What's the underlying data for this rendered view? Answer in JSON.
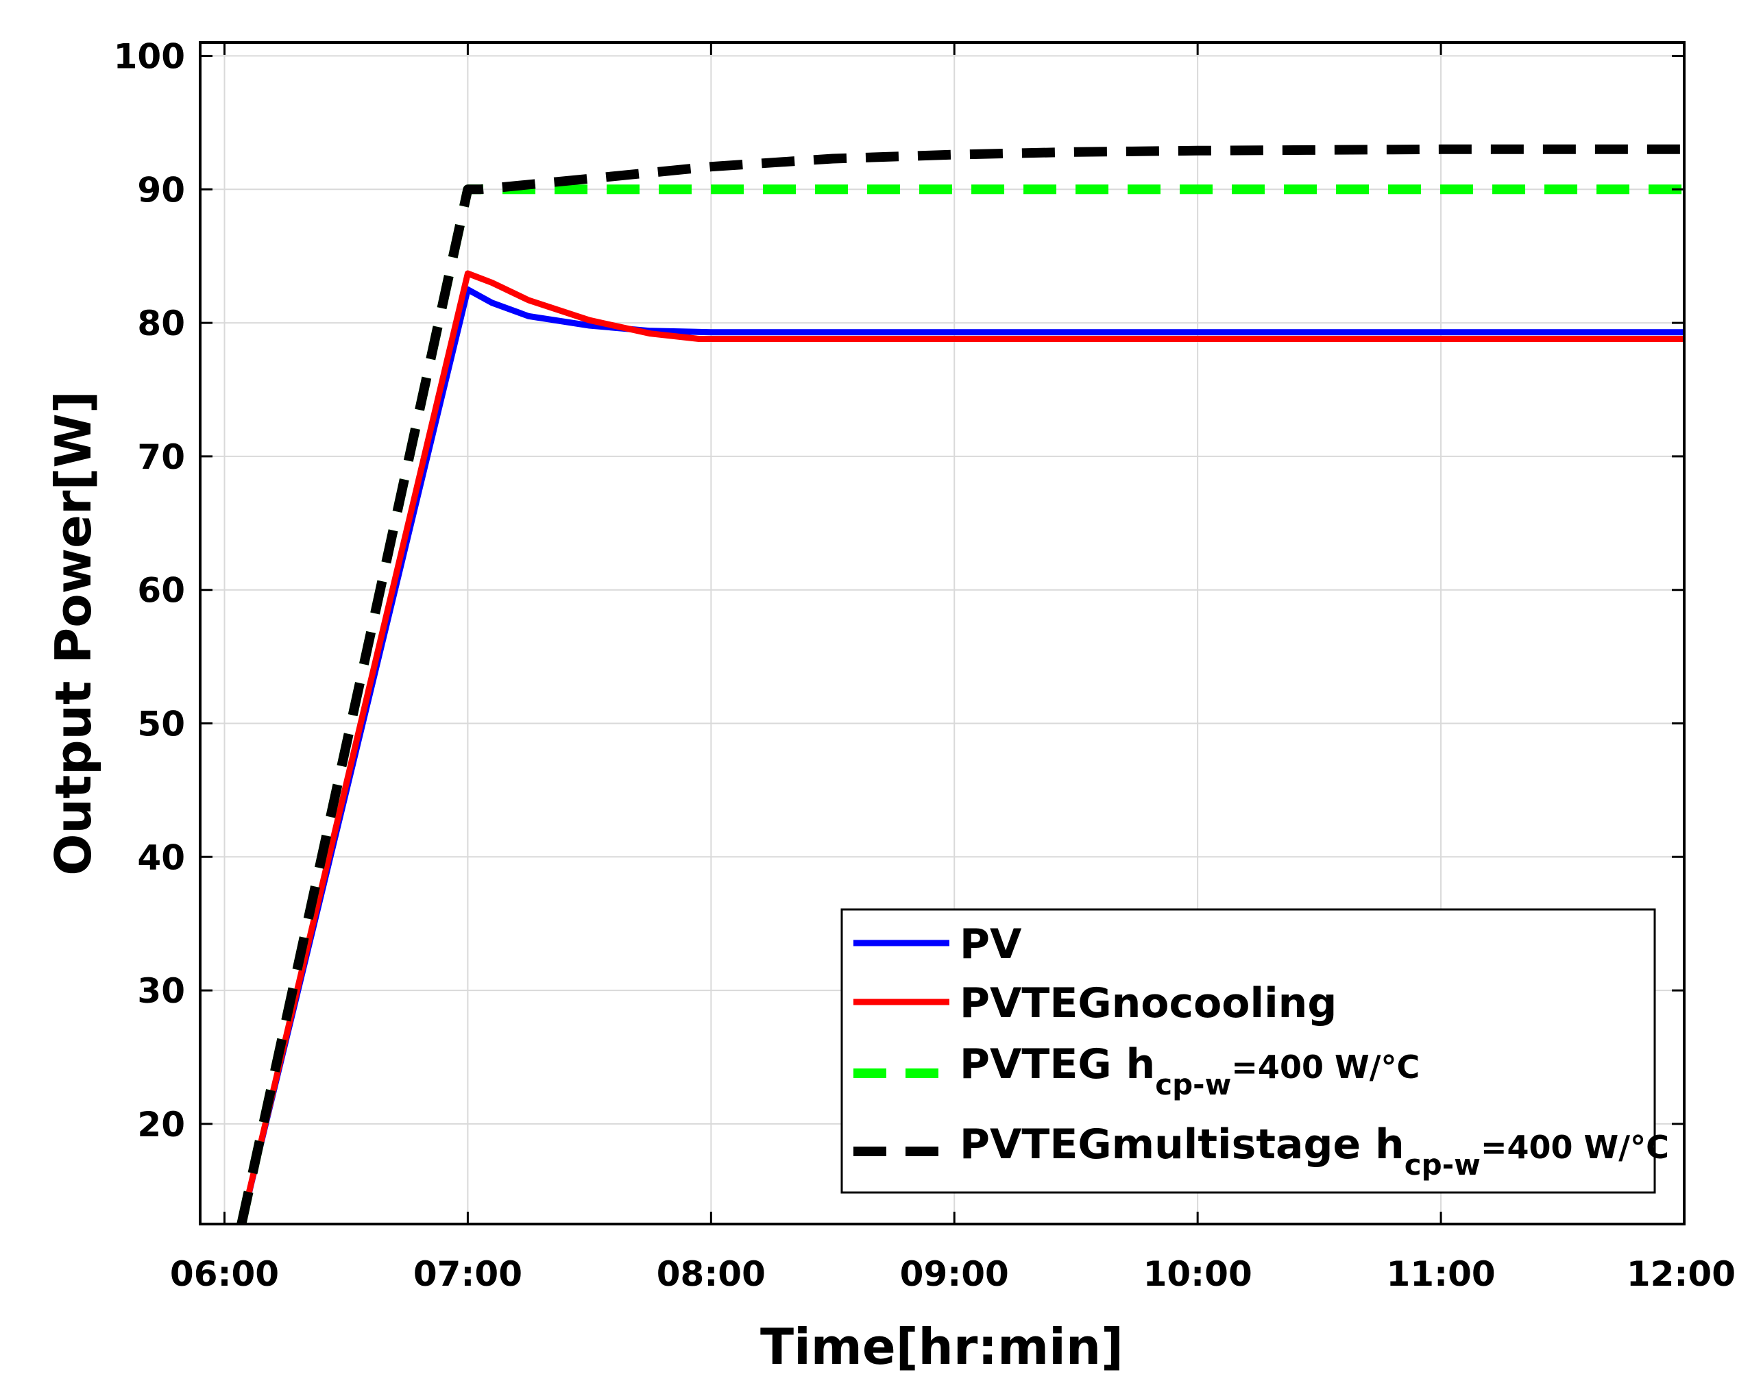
{
  "chart_data": {
    "type": "line",
    "title": "",
    "xlabel": "Time[hr:min]",
    "ylabel": "Output Power[W]",
    "xlim": [
      5.9,
      12.0
    ],
    "ylim": [
      12.5,
      101
    ],
    "x_ticks": [
      "06:00",
      "07:00",
      "08:00",
      "09:00",
      "10:00",
      "11:00",
      "12:00"
    ],
    "x_tick_values": [
      6,
      7,
      8,
      9,
      10,
      11,
      12
    ],
    "y_ticks": [
      "20",
      "30",
      "40",
      "50",
      "60",
      "70",
      "80",
      "90",
      "100"
    ],
    "y_tick_values": [
      20,
      30,
      40,
      50,
      60,
      70,
      80,
      90,
      100
    ],
    "grid": true,
    "legend_position": "bottom-right",
    "series": [
      {
        "name": "PV",
        "color": "#0000ff",
        "style": "solid",
        "x": [
          6.07,
          7.0,
          7.1,
          7.25,
          7.5,
          7.75,
          8.0,
          9.0,
          10.0,
          11.0,
          12.0
        ],
        "y": [
          12.5,
          82.5,
          81.5,
          80.5,
          79.8,
          79.4,
          79.3,
          79.3,
          79.3,
          79.3,
          79.3
        ]
      },
      {
        "name": "PVTEGnocooling",
        "color": "#ff0000",
        "style": "solid",
        "x": [
          6.07,
          7.0,
          7.1,
          7.25,
          7.5,
          7.75,
          7.95,
          9.0,
          10.0,
          11.0,
          12.0
        ],
        "y": [
          12.5,
          83.7,
          83.0,
          81.7,
          80.2,
          79.2,
          78.8,
          78.8,
          78.8,
          78.8,
          78.8
        ]
      },
      {
        "name": "PVTEG",
        "legend_subscript": "cp-w",
        "legend_suffix": "=400 W/°C",
        "color": "#00ff00",
        "style": "dashed",
        "x": [
          6.07,
          7.0,
          7.05,
          8.0,
          9.0,
          10.0,
          11.0,
          12.0
        ],
        "y": [
          12.5,
          90.0,
          90.0,
          90.0,
          90.0,
          90.0,
          90.0,
          90.0
        ]
      },
      {
        "name": "PVTEGmultistage",
        "legend_subscript": "cp-w",
        "legend_suffix": "=400 W/°C",
        "color": "#000000",
        "style": "dashed",
        "x": [
          6.07,
          7.0,
          7.05,
          7.5,
          8.0,
          8.5,
          9.0,
          9.5,
          10.0,
          11.0,
          12.0
        ],
        "y": [
          12.5,
          90.0,
          90.0,
          90.8,
          91.7,
          92.3,
          92.6,
          92.8,
          92.9,
          93.0,
          93.0
        ]
      }
    ]
  }
}
